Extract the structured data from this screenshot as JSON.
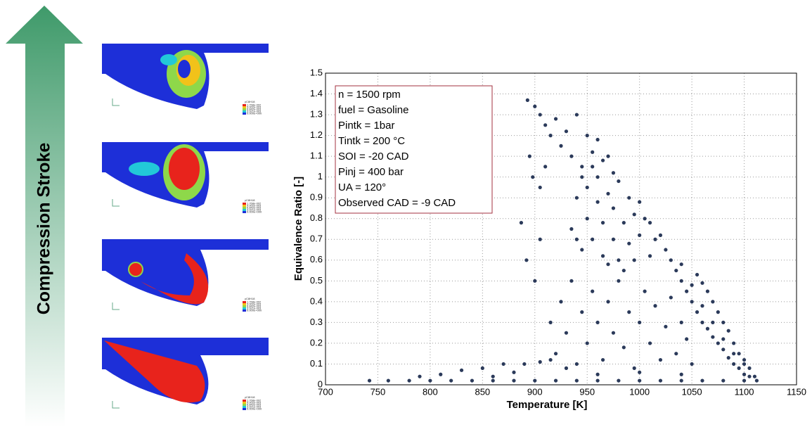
{
  "arrow_label": "Compression Stroke",
  "contour_legend": {
    "title": "yC8H18",
    "labels": [
      "1.768e-002",
      "9.002e-003",
      "6.842e-003",
      "3.921e-003",
      "0.000e+000"
    ]
  },
  "chart_data": {
    "type": "scatter",
    "xlabel": "Temperature [K]",
    "ylabel": "Equivalence Ratio  [-]",
    "annotation": [
      "n = 1500 rpm",
      "fuel = Gasoline",
      "Pintk = 1bar",
      "Tintk = 200 °C",
      "SOI = -20 CAD",
      "Pinj = 400 bar",
      "UA = 120°",
      "Observed CAD = -9 CAD"
    ],
    "xlim": [
      700,
      1150
    ],
    "ylim": [
      0,
      1.5
    ],
    "xticks": [
      700,
      750,
      800,
      850,
      900,
      950,
      1000,
      1050,
      1100,
      1150
    ],
    "yticks": [
      0,
      0.1,
      0.2,
      0.3,
      0.4,
      0.5,
      0.6,
      0.7,
      0.8,
      0.9,
      1,
      1.1,
      1.2,
      1.3,
      1.4,
      1.5
    ],
    "grid": true,
    "color": "#2b3a5a",
    "x": [
      742,
      760,
      780,
      800,
      820,
      840,
      860,
      880,
      900,
      920,
      940,
      960,
      980,
      1000,
      1020,
      1040,
      1060,
      1080,
      1100,
      1112,
      790,
      810,
      830,
      850,
      870,
      890,
      905,
      880,
      860,
      915,
      893,
      900,
      905,
      910,
      915,
      895,
      898,
      905,
      910,
      920,
      925,
      930,
      935,
      940,
      945,
      950,
      955,
      960,
      965,
      970,
      975,
      887,
      892,
      900,
      905,
      935,
      940,
      945,
      950,
      950,
      955,
      960,
      960,
      965,
      965,
      970,
      975,
      975,
      980,
      980,
      985,
      990,
      990,
      995,
      1000,
      1000,
      1005,
      1010,
      1015,
      1020,
      1025,
      945,
      955,
      940,
      970,
      985,
      995,
      1010,
      1030,
      1035,
      1040,
      1045,
      1050,
      1055,
      1060,
      1065,
      1070,
      1075,
      1080,
      1085,
      1090,
      1095,
      1100,
      1105,
      1040,
      1050,
      1060,
      1070,
      1080,
      1090,
      1100,
      1055,
      1060,
      1065,
      1070,
      1075,
      1080,
      1085,
      1090,
      1095,
      1100,
      1105,
      1110,
      915,
      920,
      925,
      930,
      935,
      940,
      945,
      950,
      955,
      960,
      965,
      970,
      975,
      980,
      985,
      990,
      995,
      1000,
      1005,
      1010,
      1015,
      1020,
      1025,
      1030,
      1035,
      1040,
      1045,
      1050,
      930,
      960,
      1000,
      1040
    ],
    "y": [
      0.02,
      0.02,
      0.02,
      0.02,
      0.02,
      0.02,
      0.02,
      0.02,
      0.02,
      0.02,
      0.02,
      0.02,
      0.02,
      0.02,
      0.02,
      0.02,
      0.02,
      0.02,
      0.02,
      0.02,
      0.04,
      0.05,
      0.07,
      0.08,
      0.1,
      0.1,
      0.11,
      0.06,
      0.04,
      0.12,
      1.37,
      1.34,
      1.3,
      1.25,
      1.2,
      1.1,
      1.0,
      0.95,
      1.05,
      1.28,
      1.15,
      1.22,
      1.1,
      1.3,
      1.05,
      1.2,
      1.12,
      1.18,
      1.08,
      1.1,
      1.02,
      0.78,
      0.6,
      0.5,
      0.7,
      0.75,
      0.9,
      0.65,
      0.8,
      0.95,
      0.7,
      0.88,
      1.0,
      0.62,
      0.78,
      0.92,
      0.7,
      0.85,
      0.6,
      0.98,
      0.78,
      0.9,
      0.68,
      0.82,
      0.88,
      0.72,
      0.8,
      0.78,
      0.7,
      0.72,
      0.65,
      1.0,
      1.05,
      0.7,
      0.58,
      0.55,
      0.6,
      0.62,
      0.6,
      0.55,
      0.5,
      0.45,
      0.4,
      0.35,
      0.3,
      0.27,
      0.23,
      0.2,
      0.17,
      0.13,
      0.1,
      0.08,
      0.05,
      0.04,
      0.58,
      0.48,
      0.38,
      0.3,
      0.22,
      0.15,
      0.1,
      0.53,
      0.49,
      0.45,
      0.4,
      0.35,
      0.3,
      0.26,
      0.2,
      0.15,
      0.12,
      0.08,
      0.04,
      0.3,
      0.15,
      0.4,
      0.25,
      0.5,
      0.1,
      0.35,
      0.2,
      0.45,
      0.3,
      0.12,
      0.4,
      0.25,
      0.5,
      0.18,
      0.35,
      0.08,
      0.3,
      0.45,
      0.2,
      0.38,
      0.12,
      0.28,
      0.42,
      0.15,
      0.3,
      0.22,
      0.1,
      0.08,
      0.05,
      0.06,
      0.05
    ]
  }
}
